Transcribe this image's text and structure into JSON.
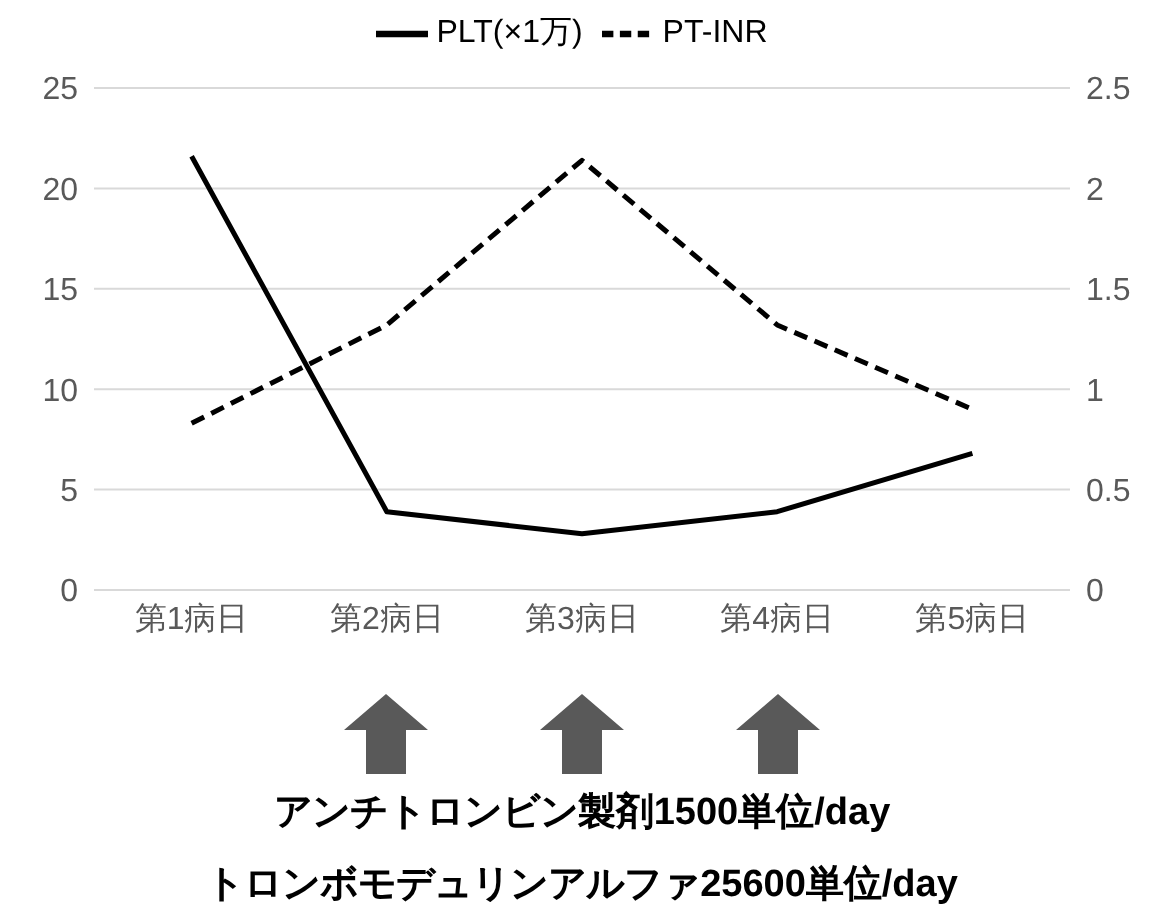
{
  "chart_data": {
    "type": "line",
    "categories": [
      "第1病日",
      "第2病日",
      "第3病日",
      "第4病日",
      "第5病日"
    ],
    "series": [
      {
        "name": "PLT(×1万)",
        "color": "#000000",
        "values": [
          21.6,
          3.9,
          2.8,
          3.9,
          6.8
        ],
        "line_style": "solid"
      },
      {
        "name": "PT-INR",
        "color": "#000000",
        "values": [
          0.83,
          1.32,
          2.14,
          1.32,
          0.9
        ],
        "axis": "y2",
        "line_style": "dashed"
      }
    ],
    "ylim": [
      0,
      25
    ],
    "yticks": [
      0,
      5,
      10,
      15,
      20,
      25
    ],
    "y2lim": [
      0,
      2.5
    ],
    "y2ticks": [
      0,
      0.5,
      1,
      1.5,
      2,
      2.5
    ],
    "grid": "y",
    "legend": "top",
    "marker": "none",
    "annotations": [
      "アンチトロンビン製剤1500単位/day",
      "トロンボモデュリンアルファ25600単位/day"
    ]
  }
}
